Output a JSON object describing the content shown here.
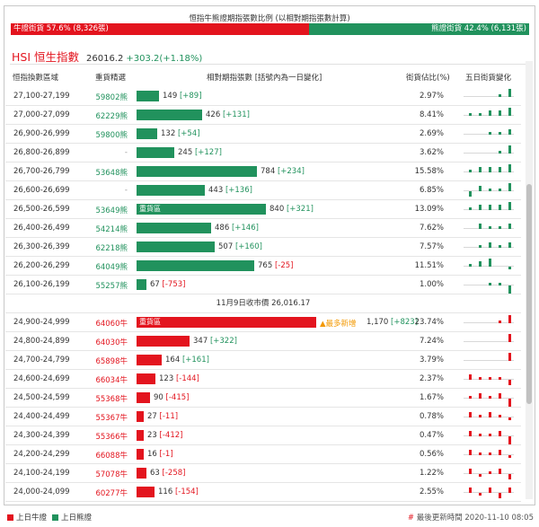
{
  "title": "恒指牛熊證期指張數比例 (以相對期指張數計算)",
  "ratio": {
    "bull_label": "牛證街貨 57.6% (8,326張)",
    "bear_label": "熊證街貨 42.4% (6,131張)",
    "bull_pct": 57.6,
    "bear_pct": 42.4,
    "bull_color": "#e3141e",
    "bear_color": "#21925d"
  },
  "index": {
    "name": "HSI 恒生指數",
    "value": "26016.2",
    "change": "+303.2(+1.18%)"
  },
  "headers": {
    "range": "恒指換數區域",
    "code": "重貨精選",
    "contracts": "相對期指張數 [括號內為一日變化]",
    "pct": "街貨佔比(%)",
    "five_day": "五日街貨變化"
  },
  "bar_scale_max": 1170,
  "bear_rows": [
    {
      "range": "27,100-27,199",
      "code": "59802熊",
      "contracts": 149,
      "num": "149",
      "delta": "[+89]",
      "dsign": "pos",
      "pct": "2.97%",
      "spark": [
        0,
        0,
        0,
        1,
        3
      ]
    },
    {
      "range": "27,000-27,099",
      "code": "62229熊",
      "contracts": 426,
      "num": "426",
      "delta": "[+131]",
      "dsign": "pos",
      "pct": "8.41%",
      "spark": [
        1,
        1,
        2,
        2,
        3
      ]
    },
    {
      "range": "26,900-26,999",
      "code": "59800熊",
      "contracts": 132,
      "num": "132",
      "delta": "[+54]",
      "dsign": "pos",
      "pct": "2.69%",
      "spark": [
        0,
        0,
        1,
        1,
        2
      ]
    },
    {
      "range": "26,800-26,899",
      "code": "-",
      "contracts": 245,
      "num": "245",
      "delta": "[+127]",
      "dsign": "pos",
      "pct": "3.62%",
      "spark": [
        0,
        0,
        0,
        1,
        3
      ]
    },
    {
      "range": "26,700-26,799",
      "code": "53648熊",
      "contracts": 784,
      "num": "784",
      "delta": "[+234]",
      "dsign": "pos",
      "pct": "15.58%",
      "spark": [
        1,
        2,
        2,
        2,
        3
      ]
    },
    {
      "range": "26,600-26,699",
      "code": "-",
      "contracts": 443,
      "num": "443",
      "delta": "[+136]",
      "dsign": "pos",
      "pct": "6.85%",
      "spark": [
        -2,
        2,
        1,
        1,
        3
      ]
    },
    {
      "range": "26,500-26,599",
      "code": "53649熊",
      "contracts": 840,
      "num": "840",
      "delta": "[+321]",
      "dsign": "pos",
      "pct": "13.09%",
      "spark": [
        1,
        2,
        2,
        2,
        3
      ],
      "tag": "重貨區"
    },
    {
      "range": "26,400-26,499",
      "code": "54214熊",
      "contracts": 486,
      "num": "486",
      "delta": "[+146]",
      "dsign": "pos",
      "pct": "7.62%",
      "spark": [
        0,
        2,
        1,
        1,
        2
      ]
    },
    {
      "range": "26,300-26,399",
      "code": "62218熊",
      "contracts": 507,
      "num": "507",
      "delta": "[+160]",
      "dsign": "pos",
      "pct": "7.57%",
      "spark": [
        0,
        1,
        2,
        1,
        2
      ]
    },
    {
      "range": "26,200-26,299",
      "code": "64049熊",
      "contracts": 765,
      "num": "765",
      "delta": "[-25]",
      "dsign": "neg",
      "pct": "11.51%",
      "spark": [
        1,
        2,
        3,
        0,
        -1
      ]
    },
    {
      "range": "26,100-26,199",
      "code": "55257熊",
      "contracts": 67,
      "num": "67",
      "delta": "[-753]",
      "dsign": "neg",
      "pct": "1.00%",
      "spark": [
        0,
        0,
        1,
        1,
        -3
      ]
    }
  ],
  "close_line": "11月9日收市價 26,016.17",
  "bull_rows": [
    {
      "range": "24,900-24,999",
      "code": "64060牛",
      "contracts": 1170,
      "num": "1,170",
      "delta": "[+823]",
      "dsign": "pos",
      "pct": "23.74%",
      "spark": [
        0,
        0,
        0,
        1,
        3
      ],
      "tag": "重貨區",
      "note": "▲最多新增"
    },
    {
      "range": "24,800-24,899",
      "code": "64030牛",
      "contracts": 347,
      "num": "347",
      "delta": "[+322]",
      "dsign": "pos",
      "pct": "7.24%",
      "spark": [
        0,
        0,
        0,
        0,
        3
      ]
    },
    {
      "range": "24,700-24,799",
      "code": "65898牛",
      "contracts": 164,
      "num": "164",
      "delta": "[+161]",
      "dsign": "pos",
      "pct": "3.79%",
      "spark": [
        0,
        0,
        0,
        0,
        3
      ]
    },
    {
      "range": "24,600-24,699",
      "code": "66034牛",
      "contracts": 123,
      "num": "123",
      "delta": "[-144]",
      "dsign": "neg",
      "pct": "2.37%",
      "spark": [
        2,
        1,
        1,
        1,
        -2
      ]
    },
    {
      "range": "24,500-24,599",
      "code": "55368牛",
      "contracts": 90,
      "num": "90",
      "delta": "[-415]",
      "dsign": "neg",
      "pct": "1.67%",
      "spark": [
        1,
        2,
        1,
        2,
        -3
      ]
    },
    {
      "range": "24,400-24,499",
      "code": "55367牛",
      "contracts": 27,
      "num": "27",
      "delta": "[-11]",
      "dsign": "neg",
      "pct": "0.78%",
      "spark": [
        2,
        1,
        2,
        1,
        -1
      ]
    },
    {
      "range": "24,300-24,399",
      "code": "55366牛",
      "contracts": 23,
      "num": "23",
      "delta": "[-412]",
      "dsign": "neg",
      "pct": "0.47%",
      "spark": [
        2,
        1,
        1,
        2,
        -3
      ]
    },
    {
      "range": "24,200-24,299",
      "code": "66088牛",
      "contracts": 16,
      "num": "16",
      "delta": "[-1]",
      "dsign": "neg",
      "pct": "0.56%",
      "spark": [
        2,
        1,
        1,
        2,
        -1
      ]
    },
    {
      "range": "24,100-24,199",
      "code": "57078牛",
      "contracts": 63,
      "num": "63",
      "delta": "[-258]",
      "dsign": "neg",
      "pct": "1.22%",
      "spark": [
        2,
        -1,
        1,
        2,
        -2
      ]
    },
    {
      "range": "24,000-24,099",
      "code": "60277牛",
      "contracts": 116,
      "num": "116",
      "delta": "[-154]",
      "dsign": "neg",
      "pct": "2.55%",
      "spark": [
        2,
        -1,
        2,
        -2,
        2
      ]
    }
  ],
  "legend": {
    "bull": "上日牛證",
    "bear": "上日熊證"
  },
  "updated": {
    "prefix": "#",
    "text": "最後更新時間 2020-11-10 08:05"
  }
}
